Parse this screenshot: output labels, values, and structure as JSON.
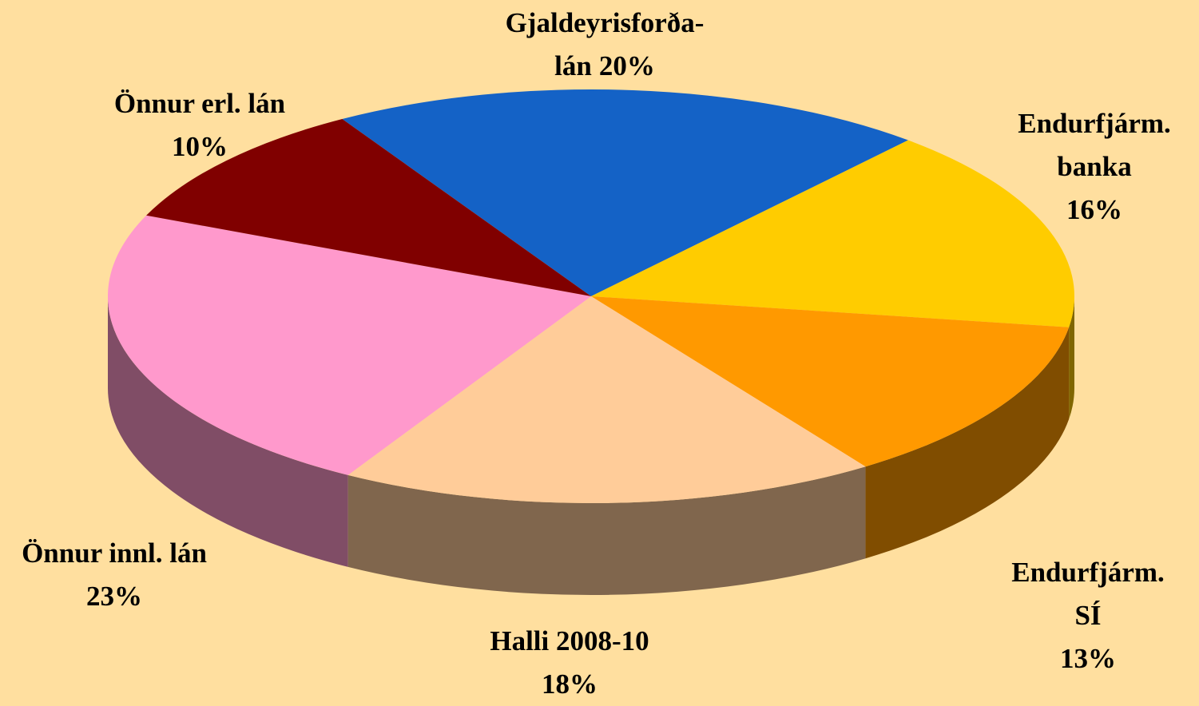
{
  "chart_data": {
    "type": "pie3d",
    "categories": [
      "Gjaldeyrisforða-\nlán",
      "Endurfjárm.\nbanka",
      "Endurfjárm. SÍ",
      "Halli 2008-10",
      "Önnur innl. lán",
      "Önnur erl. lán"
    ],
    "values": [
      20,
      16,
      13,
      18,
      23,
      10
    ],
    "value_labels": [
      "20%",
      "16%",
      "13%",
      "18%",
      "23%",
      "10%"
    ],
    "colors": [
      "#1462c6",
      "#ffcc00",
      "#ff9900",
      "#ffcc99",
      "#ff99cc",
      "#800000"
    ]
  }
}
